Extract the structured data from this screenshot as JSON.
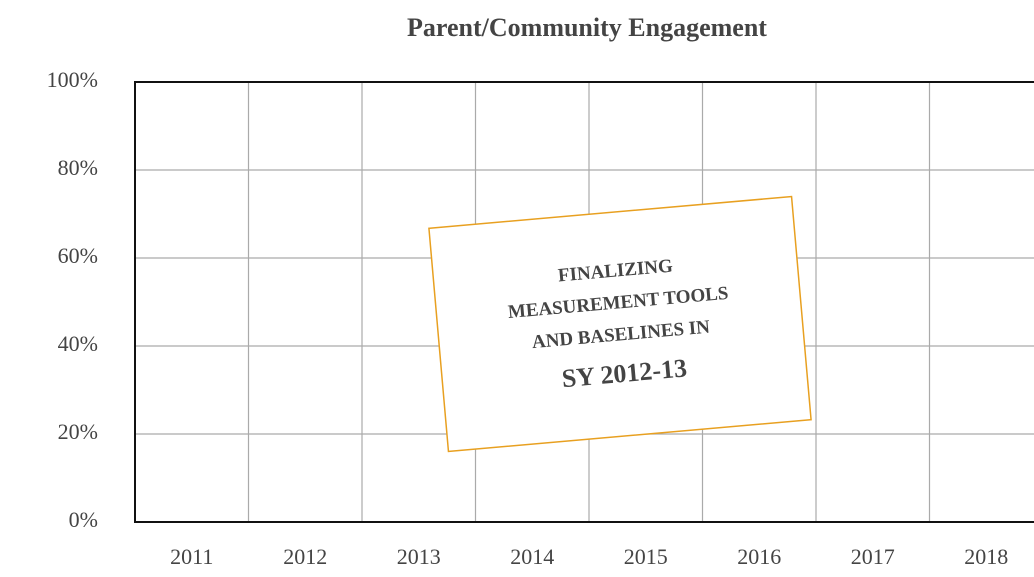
{
  "chart_data": {
    "type": "line",
    "title": "Parent/Community Engagement",
    "categories": [
      "2011",
      "2012",
      "2013",
      "2014",
      "2015",
      "2016",
      "2017",
      "2018"
    ],
    "ylim": [
      0,
      100
    ],
    "yticks": [
      {
        "value": 0,
        "label": "0%"
      },
      {
        "value": 20,
        "label": "20%"
      },
      {
        "value": 40,
        "label": "40%"
      },
      {
        "value": 60,
        "label": "60%"
      },
      {
        "value": 80,
        "label": "80%"
      },
      {
        "value": 100,
        "label": "100%"
      }
    ],
    "grid": true,
    "annotation": [
      "FINALIZING",
      "MEASUREMENT TOOLS",
      "AND BASELINES IN",
      "SY 2012-13"
    ],
    "annotation_color": "#e8a020"
  }
}
